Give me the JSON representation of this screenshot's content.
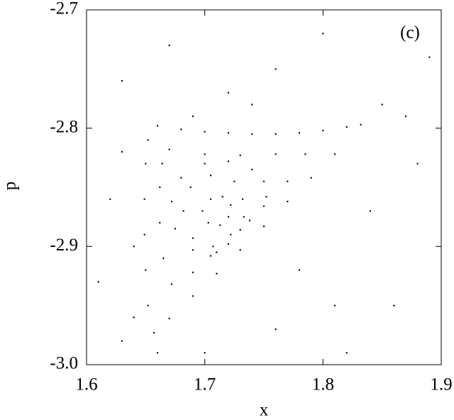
{
  "chart_data": {
    "type": "scatter",
    "annotation": "(c)",
    "xlabel": "x",
    "ylabel": "p",
    "color": "#000000",
    "xlim": [
      1.6,
      1.9
    ],
    "xticks": [
      1.6,
      1.7,
      1.8,
      1.9
    ],
    "ylim": [
      -3.0,
      -2.7
    ],
    "yticks": [
      {
        "value": -3.0,
        "label": "-3.0"
      },
      -2.9,
      -2.8,
      -2.7
    ],
    "x": [
      1.66,
      1.68,
      1.7,
      1.72,
      1.74,
      1.76,
      1.78,
      1.8,
      1.82,
      1.832,
      1.81,
      1.79,
      1.77,
      1.75,
      1.73,
      1.71,
      1.69,
      1.67,
      1.657,
      1.652,
      1.65,
      1.649,
      1.649,
      1.65,
      1.652,
      1.67,
      1.7,
      1.73,
      1.76,
      1.785,
      1.77,
      1.75,
      1.73,
      1.71,
      1.69,
      1.672,
      1.665,
      1.662,
      1.662,
      1.664,
      1.75,
      1.74,
      1.72,
      1.7,
      1.68,
      1.672,
      1.675,
      1.69,
      1.705,
      1.72,
      1.738,
      1.752,
      1.732,
      1.725,
      1.705,
      1.688,
      1.682,
      1.69,
      1.707,
      1.722,
      1.733,
      1.722,
      1.715,
      1.705,
      1.698,
      1.703,
      1.713,
      1.72,
      1.63,
      1.67,
      1.72,
      1.76,
      1.8,
      1.85,
      1.87,
      1.88,
      1.84,
      1.86,
      1.82,
      1.76,
      1.7,
      1.63,
      1.61,
      1.62,
      1.63,
      1.64,
      1.78,
      1.89,
      1.74,
      1.69,
      1.64,
      1.66,
      1.81
    ],
    "values": [
      -2.798,
      -2.801,
      -2.803,
      -2.804,
      -2.805,
      -2.805,
      -2.804,
      -2.802,
      -2.799,
      -2.797,
      -2.822,
      -2.842,
      -2.862,
      -2.883,
      -2.903,
      -2.923,
      -2.942,
      -2.961,
      -2.973,
      -2.95,
      -2.92,
      -2.89,
      -2.86,
      -2.83,
      -2.81,
      -2.818,
      -2.822,
      -2.823,
      -2.822,
      -2.822,
      -2.845,
      -2.866,
      -2.886,
      -2.905,
      -2.922,
      -2.932,
      -2.91,
      -2.88,
      -2.85,
      -2.83,
      -2.845,
      -2.835,
      -2.828,
      -2.83,
      -2.842,
      -2.862,
      -2.885,
      -2.903,
      -2.908,
      -2.898,
      -2.878,
      -2.858,
      -2.86,
      -2.845,
      -2.84,
      -2.85,
      -2.87,
      -2.893,
      -2.9,
      -2.89,
      -2.875,
      -2.865,
      -2.858,
      -2.86,
      -2.87,
      -2.88,
      -2.882,
      -2.875,
      -2.76,
      -2.73,
      -2.77,
      -2.75,
      -2.72,
      -2.78,
      -2.79,
      -2.83,
      -2.87,
      -2.95,
      -2.99,
      -2.97,
      -2.99,
      -2.98,
      -2.93,
      -2.86,
      -2.82,
      -2.9,
      -2.92,
      -2.74,
      -2.78,
      -2.79,
      -2.96,
      -2.99,
      -2.95
    ]
  }
}
